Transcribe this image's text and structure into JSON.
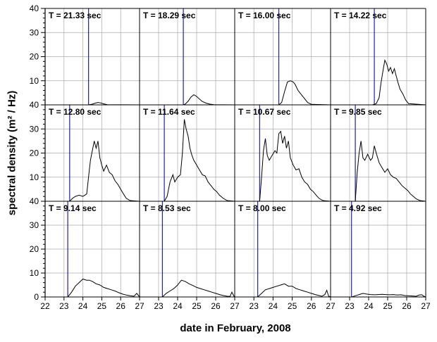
{
  "figure": {
    "ylabel": "spectral density (m² / Hz)",
    "xlabel": "date in February, 2008",
    "y_ticks": [
      "40",
      "30",
      "20",
      "10",
      "0"
    ],
    "x_ticks": [
      "22",
      "23",
      "24",
      "25",
      "26",
      "27"
    ],
    "colors": {
      "spectrum": "#000000",
      "marker": "#2222aa",
      "grid": "#aaaaaa",
      "frame": "#000000"
    }
  },
  "chart_data": {
    "type": "line",
    "layout": "4 columns x 3 rows of small-multiple panels",
    "xlabel": "date in February, 2008",
    "ylabel": "spectral density (m² / Hz)",
    "xlim": [
      22,
      27
    ],
    "ylim": [
      0,
      40
    ],
    "grid": true,
    "panels": [
      {
        "label": "T = 21.33 sec",
        "marker_x": 24.3,
        "x": [
          22.0,
          24.3,
          24.5,
          24.65,
          24.8,
          24.95,
          25.1,
          25.3,
          27.0
        ],
        "y": [
          0,
          0,
          0.3,
          0.7,
          1.0,
          0.8,
          0.4,
          0.1,
          0
        ]
      },
      {
        "label": "T = 18.29 sec",
        "marker_x": 24.3,
        "x": [
          22.0,
          24.3,
          24.4,
          24.55,
          24.7,
          24.85,
          25.0,
          25.15,
          25.3,
          25.5,
          25.7,
          25.9,
          27.0
        ],
        "y": [
          0,
          0,
          0.3,
          1.5,
          3.2,
          4.2,
          3.5,
          2.4,
          1.4,
          0.7,
          0.3,
          0.1,
          0
        ]
      },
      {
        "label": "T = 16.00 sec",
        "marker_x": 24.3,
        "x": [
          22.0,
          24.3,
          24.45,
          24.6,
          24.75,
          24.9,
          25.05,
          25.15,
          25.3,
          25.45,
          25.6,
          25.8,
          26.0,
          27.0
        ],
        "y": [
          0,
          0,
          1.0,
          5.5,
          9.5,
          10.0,
          9.5,
          8.5,
          6.0,
          4.5,
          3.0,
          1.0,
          0.2,
          0
        ]
      },
      {
        "label": "T = 14.22 sec",
        "marker_x": 24.3,
        "x": [
          22.0,
          24.2,
          24.4,
          24.55,
          24.65,
          24.75,
          24.85,
          24.95,
          25.05,
          25.15,
          25.25,
          25.35,
          25.45,
          25.55,
          25.65,
          25.8,
          25.95,
          26.1,
          27.0
        ],
        "y": [
          0,
          0,
          0.5,
          3.0,
          9.0,
          14.0,
          18.5,
          17.0,
          14.0,
          15.5,
          13.0,
          15.0,
          12.0,
          9.0,
          6.5,
          4.5,
          2.0,
          0.5,
          0
        ]
      },
      {
        "label": "T = 12.80 sec",
        "marker_x": 23.3,
        "x": [
          22.0,
          23.3,
          23.45,
          23.6,
          23.8,
          24.0,
          24.2,
          24.3,
          24.4,
          24.5,
          24.6,
          24.7,
          24.8,
          24.9,
          25.0,
          25.1,
          25.25,
          25.4,
          25.55,
          25.7,
          25.85,
          26.0,
          26.15,
          26.3,
          26.5,
          27.0
        ],
        "y": [
          0,
          0,
          1.2,
          2.0,
          2.5,
          2.0,
          3.0,
          10.0,
          17.0,
          21.0,
          25.0,
          22.0,
          25.0,
          18.0,
          15.0,
          12.5,
          15.0,
          12.0,
          11.0,
          8.5,
          7.0,
          5.0,
          3.0,
          1.2,
          0.3,
          0
        ]
      },
      {
        "label": "T = 11.64 sec",
        "marker_x": 23.3,
        "x": [
          22.0,
          23.3,
          23.45,
          23.6,
          23.75,
          23.85,
          24.0,
          24.15,
          24.25,
          24.35,
          24.45,
          24.55,
          24.65,
          24.75,
          24.85,
          25.0,
          25.15,
          25.3,
          25.45,
          25.6,
          25.75,
          25.9,
          26.05,
          26.2,
          26.4,
          26.6,
          27.0
        ],
        "y": [
          0,
          0,
          2.0,
          8.0,
          11.0,
          8.0,
          10.0,
          11.0,
          20.0,
          34.0,
          30.0,
          27.0,
          22.0,
          19.0,
          17.0,
          15.0,
          13.0,
          11.0,
          10.5,
          8.0,
          6.5,
          5.0,
          4.0,
          2.5,
          1.2,
          0.3,
          0
        ]
      },
      {
        "label": "T = 10.67 sec",
        "marker_x": 23.3,
        "x": [
          22.0,
          23.3,
          23.4,
          23.5,
          23.6,
          23.7,
          23.8,
          23.95,
          24.1,
          24.2,
          24.3,
          24.4,
          24.5,
          24.6,
          24.7,
          24.8,
          24.9,
          25.05,
          25.2,
          25.35,
          25.5,
          25.65,
          25.8,
          25.95,
          26.1,
          26.25,
          26.4,
          26.6,
          27.0
        ],
        "y": [
          0,
          0,
          10.0,
          21.0,
          26.0,
          19.0,
          17.0,
          19.0,
          21.0,
          20.0,
          28.0,
          29.0,
          24.0,
          27.0,
          22.0,
          25.0,
          18.0,
          15.0,
          13.0,
          13.5,
          10.0,
          8.0,
          7.0,
          5.0,
          4.0,
          2.5,
          1.2,
          0.3,
          0
        ]
      },
      {
        "label": "T = 9.85 sec",
        "marker_x": 23.3,
        "x": [
          22.0,
          23.3,
          23.4,
          23.5,
          23.6,
          23.7,
          23.8,
          23.95,
          24.1,
          24.2,
          24.3,
          24.4,
          24.55,
          24.7,
          24.85,
          25.0,
          25.15,
          25.3,
          25.45,
          25.6,
          25.75,
          25.9,
          26.05,
          26.2,
          26.35,
          26.5,
          26.7,
          27.0
        ],
        "y": [
          0,
          0,
          12.0,
          20.0,
          25.0,
          18.0,
          17.0,
          19.5,
          17.0,
          18.0,
          23.0,
          20.0,
          16.0,
          14.0,
          12.0,
          13.5,
          11.0,
          10.0,
          9.5,
          8.0,
          6.5,
          5.5,
          4.5,
          3.0,
          2.0,
          1.0,
          0.3,
          0
        ]
      },
      {
        "label": "T = 9.14 sec",
        "marker_x": 23.2,
        "x": [
          22.0,
          23.2,
          23.4,
          23.6,
          23.8,
          24.0,
          24.2,
          24.35,
          24.5,
          24.7,
          24.9,
          25.1,
          25.3,
          25.5,
          25.7,
          25.9,
          26.1,
          26.3,
          26.5,
          26.7,
          26.85,
          26.95,
          27.0
        ],
        "y": [
          0,
          0,
          2.0,
          4.5,
          6.0,
          7.5,
          7.0,
          7.0,
          6.5,
          5.5,
          5.0,
          4.0,
          3.5,
          3.0,
          2.5,
          1.8,
          1.2,
          0.8,
          0.5,
          0.3,
          1.5,
          0.5,
          0
        ]
      },
      {
        "label": "T = 8.53 sec",
        "marker_x": 23.2,
        "x": [
          22.0,
          23.2,
          23.4,
          23.6,
          23.8,
          24.0,
          24.2,
          24.4,
          24.6,
          24.8,
          25.0,
          25.2,
          25.4,
          25.6,
          25.8,
          26.0,
          26.2,
          26.4,
          26.6,
          26.75,
          26.85,
          26.95,
          27.0
        ],
        "y": [
          0,
          0,
          1.5,
          2.5,
          3.5,
          5.0,
          7.0,
          6.5,
          5.5,
          4.8,
          4.0,
          3.5,
          3.0,
          2.5,
          2.0,
          1.5,
          1.0,
          0.6,
          0.3,
          0.2,
          2.0,
          0.5,
          0
        ]
      },
      {
        "label": "T = 8.00 sec",
        "marker_x": 23.2,
        "x": [
          22.0,
          23.2,
          23.4,
          23.6,
          23.8,
          24.0,
          24.2,
          24.4,
          24.6,
          24.8,
          25.0,
          25.2,
          25.4,
          25.6,
          25.8,
          26.0,
          26.2,
          26.4,
          26.55,
          26.7,
          26.8,
          26.9,
          27.0
        ],
        "y": [
          0,
          0,
          1.5,
          3.0,
          3.5,
          4.0,
          4.5,
          5.0,
          5.5,
          4.5,
          4.5,
          3.5,
          3.0,
          2.5,
          2.0,
          1.5,
          1.0,
          0.6,
          0.3,
          1.0,
          2.8,
          0.3,
          0
        ]
      },
      {
        "label": "T = 4.92 sec",
        "marker_x": 23.1,
        "x": [
          22.0,
          23.1,
          23.3,
          23.5,
          23.7,
          23.9,
          24.1,
          24.3,
          24.5,
          24.7,
          24.9,
          25.1,
          25.3,
          25.5,
          25.7,
          25.9,
          26.1,
          26.3,
          26.5,
          26.65,
          26.8,
          26.9,
          27.0
        ],
        "y": [
          0,
          0,
          0.5,
          1.0,
          1.5,
          1.2,
          1.0,
          0.9,
          1.0,
          1.1,
          1.0,
          0.9,
          1.0,
          0.8,
          0.9,
          0.6,
          0.5,
          0.4,
          0.3,
          0.8,
          0.9,
          0.3,
          0
        ]
      }
    ]
  }
}
